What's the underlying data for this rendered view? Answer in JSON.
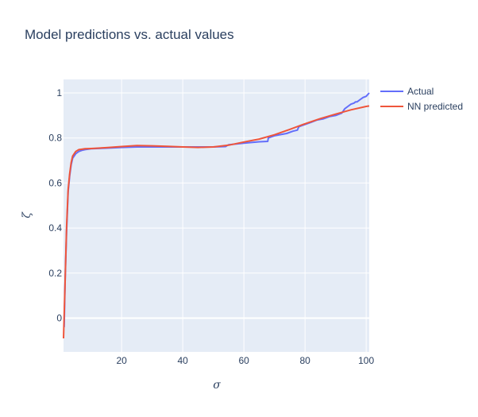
{
  "chart_data": {
    "type": "line",
    "title": "Model predictions vs. actual values",
    "xlabel": "σ",
    "ylabel": "ζ",
    "xlim": [
      1,
      101
    ],
    "ylim": [
      -0.15,
      1.06
    ],
    "xticks": [
      20,
      40,
      60,
      80,
      100
    ],
    "yticks": [
      0,
      0.2,
      0.4,
      0.6,
      0.8,
      1
    ],
    "grid": true,
    "legend_position": "top-right",
    "colors": {
      "plot_bg": "#E5ECF6",
      "grid": "#ffffff",
      "text": "#2a3f5f"
    },
    "series": [
      {
        "name": "Actual",
        "color": "#636EFA",
        "x": [
          1.2,
          1.5,
          2,
          2.5,
          3,
          3.5,
          4,
          5,
          6,
          7,
          8,
          10,
          15,
          20,
          25,
          30,
          35,
          40,
          45,
          50,
          54,
          55,
          60,
          65,
          67.8,
          68,
          70,
          74,
          76,
          77.5,
          78,
          80,
          82,
          84,
          86,
          88,
          90,
          92,
          93,
          94,
          95,
          96,
          96.5,
          97,
          98,
          99,
          100,
          101
        ],
        "y": [
          -0.04,
          0.15,
          0.38,
          0.56,
          0.63,
          0.68,
          0.71,
          0.73,
          0.74,
          0.745,
          0.748,
          0.752,
          0.755,
          0.758,
          0.76,
          0.76,
          0.76,
          0.76,
          0.76,
          0.76,
          0.762,
          0.77,
          0.777,
          0.783,
          0.785,
          0.8,
          0.81,
          0.82,
          0.83,
          0.835,
          0.85,
          0.86,
          0.87,
          0.88,
          0.885,
          0.895,
          0.9,
          0.91,
          0.93,
          0.94,
          0.95,
          0.955,
          0.96,
          0.96,
          0.97,
          0.98,
          0.985,
          1.0
        ]
      },
      {
        "name": "NN predicted",
        "color": "#EF553B",
        "x": [
          1,
          1.5,
          2,
          2.5,
          3,
          3.5,
          4,
          5,
          6,
          7,
          8,
          10,
          15,
          20,
          25,
          30,
          35,
          40,
          45,
          50,
          55,
          60,
          65,
          70,
          75,
          80,
          85,
          90,
          95,
          100,
          101
        ],
        "y": [
          -0.09,
          0.15,
          0.4,
          0.57,
          0.64,
          0.69,
          0.72,
          0.74,
          0.748,
          0.75,
          0.752,
          0.753,
          0.757,
          0.762,
          0.766,
          0.765,
          0.763,
          0.76,
          0.758,
          0.76,
          0.768,
          0.782,
          0.795,
          0.814,
          0.838,
          0.863,
          0.886,
          0.906,
          0.925,
          0.94,
          0.942
        ]
      }
    ]
  }
}
